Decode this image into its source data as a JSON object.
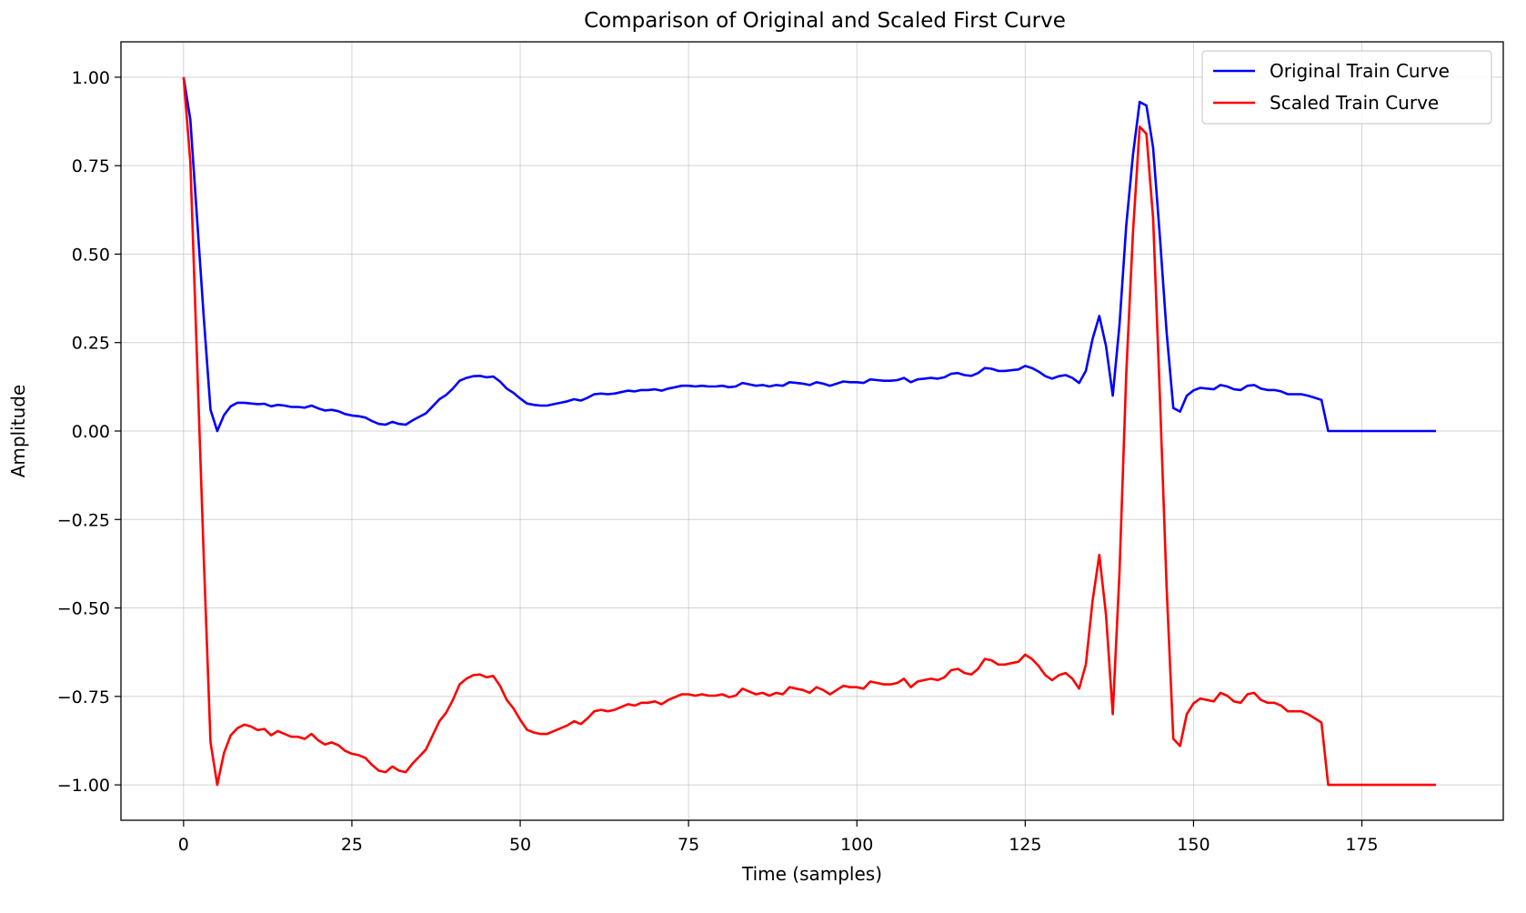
{
  "chart_data": {
    "type": "line",
    "title": "Comparison of Original and Scaled First Curve",
    "xlabel": "Time (samples)",
    "ylabel": "Amplitude",
    "xlim": [
      -9.3,
      196
    ],
    "ylim": [
      -1.1,
      1.1
    ],
    "x_ticks": [
      0,
      25,
      50,
      75,
      100,
      125,
      150,
      175
    ],
    "x_tick_labels": [
      "0",
      "25",
      "50",
      "75",
      "100",
      "125",
      "150",
      "175"
    ],
    "y_ticks": [
      1.0,
      0.75,
      0.5,
      0.25,
      0.0,
      -0.25,
      -0.5,
      -0.75,
      -1.0
    ],
    "y_tick_labels": [
      "1.00",
      "0.75",
      "0.50",
      "0.25",
      "0.00",
      "−0.25",
      "−0.50",
      "−0.75",
      "−1.00"
    ],
    "grid": true,
    "legend_position": "top-right",
    "series": [
      {
        "name": "Original Train Curve",
        "color": "#0000ff",
        "x": [
          0,
          1,
          2,
          3,
          4,
          5,
          6,
          7,
          8,
          9,
          10,
          11,
          12,
          13,
          14,
          15,
          16,
          17,
          18,
          19,
          20,
          21,
          22,
          23,
          24,
          25,
          26,
          27,
          28,
          29,
          30,
          31,
          32,
          33,
          34,
          35,
          36,
          37,
          38,
          39,
          40,
          41,
          42,
          43,
          44,
          45,
          46,
          47,
          48,
          49,
          50,
          51,
          52,
          53,
          54,
          55,
          56,
          57,
          58,
          59,
          60,
          61,
          62,
          63,
          64,
          65,
          66,
          67,
          68,
          69,
          70,
          71,
          72,
          73,
          74,
          75,
          76,
          77,
          78,
          79,
          80,
          81,
          82,
          83,
          84,
          85,
          86,
          87,
          88,
          89,
          90,
          91,
          92,
          93,
          94,
          95,
          96,
          97,
          98,
          99,
          100,
          101,
          102,
          103,
          104,
          105,
          106,
          107,
          108,
          109,
          110,
          111,
          112,
          113,
          114,
          115,
          116,
          117,
          118,
          119,
          120,
          121,
          122,
          123,
          124,
          125,
          126,
          127,
          128,
          129,
          130,
          131,
          132,
          133,
          134,
          135,
          136,
          137,
          138,
          139,
          140,
          141,
          142,
          143,
          144,
          145,
          146,
          147,
          148,
          149,
          150,
          151,
          152,
          153,
          154,
          155,
          156,
          157,
          158,
          159,
          160,
          161,
          162,
          163,
          164,
          165,
          166,
          167,
          168,
          169,
          170,
          171,
          172,
          173,
          174,
          175,
          176,
          177,
          178,
          179,
          180,
          181,
          182,
          183,
          184,
          185,
          186
        ],
        "values": [
          1.0,
          0.88,
          0.6,
          0.32,
          0.06,
          0.0,
          0.045,
          0.07,
          0.08,
          0.08,
          0.078,
          0.076,
          0.077,
          0.07,
          0.074,
          0.072,
          0.068,
          0.068,
          0.066,
          0.072,
          0.064,
          0.058,
          0.06,
          0.056,
          0.048,
          0.044,
          0.042,
          0.038,
          0.028,
          0.02,
          0.018,
          0.026,
          0.02,
          0.018,
          0.03,
          0.04,
          0.05,
          0.07,
          0.09,
          0.102,
          0.12,
          0.142,
          0.15,
          0.155,
          0.156,
          0.152,
          0.154,
          0.14,
          0.12,
          0.108,
          0.092,
          0.078,
          0.074,
          0.072,
          0.072,
          0.076,
          0.08,
          0.084,
          0.09,
          0.086,
          0.094,
          0.104,
          0.106,
          0.104,
          0.106,
          0.11,
          0.114,
          0.112,
          0.116,
          0.116,
          0.118,
          0.114,
          0.12,
          0.124,
          0.128,
          0.128,
          0.126,
          0.128,
          0.126,
          0.126,
          0.128,
          0.124,
          0.126,
          0.136,
          0.132,
          0.128,
          0.13,
          0.126,
          0.13,
          0.128,
          0.138,
          0.136,
          0.134,
          0.13,
          0.138,
          0.134,
          0.128,
          0.134,
          0.14,
          0.138,
          0.138,
          0.136,
          0.146,
          0.144,
          0.142,
          0.142,
          0.144,
          0.15,
          0.138,
          0.146,
          0.148,
          0.15,
          0.148,
          0.152,
          0.162,
          0.164,
          0.158,
          0.156,
          0.164,
          0.178,
          0.176,
          0.17,
          0.17,
          0.172,
          0.174,
          0.184,
          0.178,
          0.168,
          0.155,
          0.148,
          0.155,
          0.158,
          0.15,
          0.136,
          0.17,
          0.26,
          0.325,
          0.24,
          0.1,
          0.3,
          0.58,
          0.78,
          0.93,
          0.92,
          0.8,
          0.55,
          0.28,
          0.065,
          0.055,
          0.1,
          0.115,
          0.122,
          0.12,
          0.118,
          0.13,
          0.126,
          0.118,
          0.116,
          0.128,
          0.13,
          0.12,
          0.116,
          0.116,
          0.112,
          0.104,
          0.104,
          0.104,
          0.1,
          0.094,
          0.088,
          0.0,
          0.0,
          0.0,
          0.0,
          0.0,
          0.0,
          0.0,
          0.0,
          0.0,
          0.0,
          0.0,
          0.0,
          0.0,
          0.0,
          0.0,
          0.0,
          0.0
        ]
      },
      {
        "name": "Scaled Train Curve",
        "color": "#ff0000",
        "x": [
          0,
          1,
          2,
          3,
          4,
          5,
          6,
          7,
          8,
          9,
          10,
          11,
          12,
          13,
          14,
          15,
          16,
          17,
          18,
          19,
          20,
          21,
          22,
          23,
          24,
          25,
          26,
          27,
          28,
          29,
          30,
          31,
          32,
          33,
          34,
          35,
          36,
          37,
          38,
          39,
          40,
          41,
          42,
          43,
          44,
          45,
          46,
          47,
          48,
          49,
          50,
          51,
          52,
          53,
          54,
          55,
          56,
          57,
          58,
          59,
          60,
          61,
          62,
          63,
          64,
          65,
          66,
          67,
          68,
          69,
          70,
          71,
          72,
          73,
          74,
          75,
          76,
          77,
          78,
          79,
          80,
          81,
          82,
          83,
          84,
          85,
          86,
          87,
          88,
          89,
          90,
          91,
          92,
          93,
          94,
          95,
          96,
          97,
          98,
          99,
          100,
          101,
          102,
          103,
          104,
          105,
          106,
          107,
          108,
          109,
          110,
          111,
          112,
          113,
          114,
          115,
          116,
          117,
          118,
          119,
          120,
          121,
          122,
          123,
          124,
          125,
          126,
          127,
          128,
          129,
          130,
          131,
          132,
          133,
          134,
          135,
          136,
          137,
          138,
          139,
          140,
          141,
          142,
          143,
          144,
          145,
          146,
          147,
          148,
          149,
          150,
          151,
          152,
          153,
          154,
          155,
          156,
          157,
          158,
          159,
          160,
          161,
          162,
          163,
          164,
          165,
          166,
          167,
          168,
          169,
          170,
          171,
          172,
          173,
          174,
          175,
          176,
          177,
          178,
          179,
          180,
          181,
          182,
          183,
          184,
          185,
          186
        ],
        "values": [
          1.0,
          0.76,
          0.2,
          -0.36,
          -0.88,
          -1.0,
          -0.91,
          -0.86,
          -0.84,
          -0.83,
          -0.835,
          -0.845,
          -0.842,
          -0.86,
          -0.848,
          -0.856,
          -0.864,
          -0.864,
          -0.87,
          -0.856,
          -0.874,
          -0.886,
          -0.88,
          -0.888,
          -0.904,
          -0.912,
          -0.916,
          -0.924,
          -0.944,
          -0.96,
          -0.964,
          -0.948,
          -0.96,
          -0.964,
          -0.94,
          -0.92,
          -0.9,
          -0.86,
          -0.82,
          -0.796,
          -0.76,
          -0.716,
          -0.7,
          -0.69,
          -0.688,
          -0.696,
          -0.692,
          -0.72,
          -0.76,
          -0.784,
          -0.816,
          -0.844,
          -0.852,
          -0.856,
          -0.856,
          -0.848,
          -0.84,
          -0.832,
          -0.82,
          -0.828,
          -0.812,
          -0.792,
          -0.788,
          -0.792,
          -0.788,
          -0.78,
          -0.772,
          -0.776,
          -0.768,
          -0.768,
          -0.764,
          -0.772,
          -0.76,
          -0.752,
          -0.744,
          -0.744,
          -0.748,
          -0.744,
          -0.748,
          -0.748,
          -0.744,
          -0.752,
          -0.748,
          -0.728,
          -0.736,
          -0.744,
          -0.74,
          -0.748,
          -0.74,
          -0.744,
          -0.724,
          -0.728,
          -0.732,
          -0.74,
          -0.724,
          -0.732,
          -0.744,
          -0.732,
          -0.72,
          -0.724,
          -0.724,
          -0.728,
          -0.708,
          -0.712,
          -0.716,
          -0.716,
          -0.712,
          -0.7,
          -0.724,
          -0.708,
          -0.704,
          -0.7,
          -0.704,
          -0.696,
          -0.676,
          -0.672,
          -0.684,
          -0.688,
          -0.672,
          -0.644,
          -0.648,
          -0.66,
          -0.66,
          -0.656,
          -0.652,
          -0.632,
          -0.644,
          -0.664,
          -0.69,
          -0.704,
          -0.69,
          -0.684,
          -0.7,
          -0.728,
          -0.66,
          -0.48,
          -0.35,
          -0.52,
          -0.8,
          -0.4,
          0.16,
          0.56,
          0.86,
          0.84,
          0.6,
          0.1,
          -0.44,
          -0.87,
          -0.89,
          -0.8,
          -0.77,
          -0.756,
          -0.76,
          -0.764,
          -0.74,
          -0.748,
          -0.764,
          -0.768,
          -0.744,
          -0.74,
          -0.76,
          -0.768,
          -0.768,
          -0.776,
          -0.792,
          -0.792,
          -0.792,
          -0.8,
          -0.812,
          -0.824,
          -1.0,
          -1.0,
          -1.0,
          -1.0,
          -1.0,
          -1.0,
          -1.0,
          -1.0,
          -1.0,
          -1.0,
          -1.0,
          -1.0,
          -1.0,
          -1.0,
          -1.0,
          -1.0,
          -1.0
        ]
      }
    ]
  }
}
